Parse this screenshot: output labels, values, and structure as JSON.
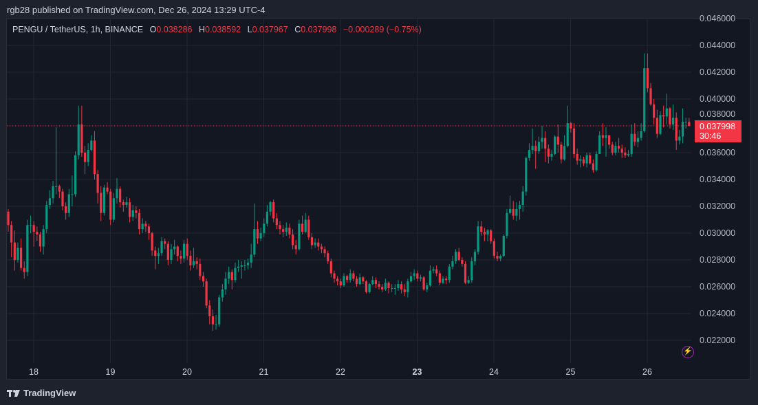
{
  "header": {
    "published": "rgb28 published on TradingView.com, Dec 26, 2024 13:29 UTC-4"
  },
  "legend": {
    "symbol": "PENGU / TetherUS, 1h, BINANCE",
    "o_label": "O",
    "o": "0.038286",
    "h_label": "H",
    "h": "0.038592",
    "l_label": "L",
    "l": "0.037967",
    "c_label": "C",
    "c": "0.037998",
    "change": "−0.000289 (−0.75%)"
  },
  "price_label": {
    "price": "0.037998",
    "countdown": "30:46"
  },
  "footer": {
    "brand": "TradingView",
    "logo": "tradingview-logo"
  },
  "icons": {
    "bolt": "lightning-icon"
  },
  "colors": {
    "up": "#089981",
    "down": "#f23645",
    "background": "#131722",
    "grid": "#232733",
    "text": "#d1d4dc",
    "accent": "#9c27b0"
  },
  "chart_data": {
    "type": "candlestick",
    "title": "PENGU / TetherUS, 1h, BINANCE",
    "interval": "1h",
    "x_start": "Dec 17 16:00",
    "x_ticks": [
      "18",
      "19",
      "20",
      "21",
      "22",
      "23",
      "24",
      "25",
      "26"
    ],
    "x_tick_bold": "23",
    "y_ticks": [
      "0.022000",
      "0.024000",
      "0.026000",
      "0.028000",
      "0.030000",
      "0.032000",
      "0.034000",
      "0.036000",
      "0.038000",
      "0.040000",
      "0.042000",
      "0.044000",
      "0.046000"
    ],
    "ylim": [
      0.0212,
      0.0468
    ],
    "grid": true,
    "last_price": 0.037998,
    "first_open": 0.0316,
    "close": [
      0.0306,
      0.0293,
      0.028,
      0.0289,
      0.0274,
      0.0271,
      0.0306,
      0.0306,
      0.0301,
      0.0299,
      0.029,
      0.0303,
      0.0321,
      0.0326,
      0.0335,
      0.0335,
      0.0331,
      0.032,
      0.0315,
      0.0329,
      0.0329,
      0.0358,
      0.0381,
      0.036,
      0.0353,
      0.0362,
      0.0369,
      0.0344,
      0.033,
      0.0315,
      0.0334,
      0.0331,
      0.031,
      0.0326,
      0.0333,
      0.0323,
      0.0321,
      0.0323,
      0.0312,
      0.0317,
      0.0315,
      0.0303,
      0.0307,
      0.0305,
      0.03,
      0.0287,
      0.0283,
      0.0285,
      0.0294,
      0.0292,
      0.028,
      0.0288,
      0.029,
      0.0283,
      0.0281,
      0.0292,
      0.0283,
      0.0276,
      0.0279,
      0.0277,
      0.0268,
      0.0264,
      0.0246,
      0.0238,
      0.0232,
      0.0232,
      0.0252,
      0.0258,
      0.0266,
      0.0271,
      0.0265,
      0.0274,
      0.0275,
      0.0276,
      0.0276,
      0.0278,
      0.0284,
      0.0303,
      0.0296,
      0.03,
      0.0307,
      0.0316,
      0.0323,
      0.0311,
      0.0306,
      0.0303,
      0.0301,
      0.0304,
      0.0299,
      0.0291,
      0.0288,
      0.0307,
      0.0301,
      0.031,
      0.0297,
      0.0291,
      0.0293,
      0.029,
      0.0288,
      0.0285,
      0.0279,
      0.027,
      0.0266,
      0.0264,
      0.0261,
      0.0268,
      0.0265,
      0.027,
      0.0266,
      0.0262,
      0.0267,
      0.0264,
      0.0256,
      0.0262,
      0.0265,
      0.0262,
      0.026,
      0.0258,
      0.0263,
      0.0259,
      0.0259,
      0.0259,
      0.0262,
      0.0258,
      0.0256,
      0.0264,
      0.0268,
      0.027,
      0.0266,
      0.0267,
      0.0258,
      0.0261,
      0.0272,
      0.0273,
      0.027,
      0.0263,
      0.0266,
      0.0265,
      0.0275,
      0.0279,
      0.0286,
      0.028,
      0.0277,
      0.0263,
      0.0265,
      0.0279,
      0.0286,
      0.0305,
      0.0301,
      0.0299,
      0.0302,
      0.0294,
      0.0283,
      0.0281,
      0.0283,
      0.0298,
      0.0315,
      0.0318,
      0.0313,
      0.0318,
      0.0321,
      0.0331,
      0.0356,
      0.0362,
      0.0365,
      0.0361,
      0.0368,
      0.0371,
      0.0363,
      0.0357,
      0.0359,
      0.0372,
      0.0366,
      0.0355,
      0.0365,
      0.0382,
      0.0378,
      0.0359,
      0.0354,
      0.0355,
      0.0352,
      0.0358,
      0.0352,
      0.0347,
      0.0359,
      0.0373,
      0.0371,
      0.0373,
      0.0366,
      0.036,
      0.0365,
      0.0363,
      0.036,
      0.0358,
      0.0359,
      0.0374,
      0.0368,
      0.0371,
      0.0376,
      0.0423,
      0.0408,
      0.0396,
      0.0386,
      0.0374,
      0.0388,
      0.0387,
      0.0393,
      0.0381,
      0.0386,
      0.0369,
      0.0372,
      0.0383,
      0.0383,
      0.037998
    ],
    "high": [
      0.0318,
      0.0309,
      0.0302,
      0.0293,
      0.0296,
      0.0279,
      0.031,
      0.0313,
      0.0309,
      0.0305,
      0.0301,
      0.0306,
      0.0324,
      0.0332,
      0.0339,
      0.0379,
      0.0336,
      0.0333,
      0.0323,
      0.0333,
      0.0343,
      0.0361,
      0.0395,
      0.0395,
      0.0365,
      0.0367,
      0.0373,
      0.0376,
      0.0347,
      0.0335,
      0.0336,
      0.0338,
      0.0333,
      0.033,
      0.0341,
      0.0335,
      0.0325,
      0.0327,
      0.0326,
      0.0321,
      0.032,
      0.0318,
      0.0311,
      0.0309,
      0.0307,
      0.0301,
      0.029,
      0.0289,
      0.0297,
      0.0296,
      0.0294,
      0.0292,
      0.0295,
      0.0291,
      0.0287,
      0.0295,
      0.0296,
      0.0287,
      0.0289,
      0.0282,
      0.0281,
      0.0271,
      0.0266,
      0.025,
      0.0243,
      0.0239,
      0.0254,
      0.0262,
      0.0271,
      0.0275,
      0.0273,
      0.0278,
      0.028,
      0.0279,
      0.028,
      0.0281,
      0.0292,
      0.0322,
      0.0309,
      0.0304,
      0.0311,
      0.0321,
      0.0324,
      0.0325,
      0.0315,
      0.0309,
      0.0306,
      0.0308,
      0.0307,
      0.0303,
      0.0295,
      0.031,
      0.0313,
      0.0315,
      0.0313,
      0.03,
      0.0296,
      0.0296,
      0.0292,
      0.029,
      0.0287,
      0.0281,
      0.0272,
      0.0268,
      0.0266,
      0.027,
      0.0269,
      0.0273,
      0.0272,
      0.0268,
      0.027,
      0.0268,
      0.0265,
      0.0263,
      0.0268,
      0.0267,
      0.0264,
      0.0262,
      0.0266,
      0.0264,
      0.0262,
      0.0262,
      0.0265,
      0.0264,
      0.0262,
      0.0266,
      0.0271,
      0.0273,
      0.0272,
      0.0269,
      0.0268,
      0.0263,
      0.0276,
      0.0275,
      0.0276,
      0.0272,
      0.0268,
      0.0268,
      0.0277,
      0.0283,
      0.0288,
      0.0289,
      0.0282,
      0.0279,
      0.0268,
      0.0282,
      0.0288,
      0.0309,
      0.0309,
      0.0304,
      0.0303,
      0.0303,
      0.0296,
      0.0286,
      0.0284,
      0.0299,
      0.0318,
      0.0328,
      0.0324,
      0.0323,
      0.0324,
      0.0335,
      0.0357,
      0.0367,
      0.0378,
      0.0369,
      0.0372,
      0.038,
      0.0376,
      0.0366,
      0.0362,
      0.0373,
      0.0381,
      0.0368,
      0.0373,
      0.0395,
      0.0383,
      0.0382,
      0.0363,
      0.0358,
      0.0357,
      0.036,
      0.036,
      0.0355,
      0.0361,
      0.0376,
      0.0382,
      0.0379,
      0.0373,
      0.0368,
      0.0368,
      0.0371,
      0.0366,
      0.0364,
      0.0362,
      0.0381,
      0.0382,
      0.0376,
      0.0382,
      0.0434,
      0.0434,
      0.0412,
      0.04,
      0.0392,
      0.0391,
      0.0395,
      0.0404,
      0.0394,
      0.0396,
      0.039,
      0.0377,
      0.0393,
      0.0386,
      0.038592
    ],
    "low": [
      0.0301,
      0.0282,
      0.0272,
      0.0278,
      0.0272,
      0.0266,
      0.0268,
      0.03,
      0.029,
      0.0294,
      0.0286,
      0.0284,
      0.03,
      0.0318,
      0.0322,
      0.0329,
      0.0326,
      0.0317,
      0.031,
      0.0312,
      0.032,
      0.0327,
      0.0355,
      0.0357,
      0.0344,
      0.035,
      0.0361,
      0.034,
      0.0322,
      0.0309,
      0.0313,
      0.0329,
      0.0306,
      0.0308,
      0.0322,
      0.0319,
      0.0316,
      0.0319,
      0.0308,
      0.0309,
      0.0311,
      0.0299,
      0.03,
      0.0301,
      0.0295,
      0.0283,
      0.0273,
      0.0277,
      0.0283,
      0.0288,
      0.0276,
      0.0277,
      0.0284,
      0.0279,
      0.0277,
      0.0278,
      0.028,
      0.0272,
      0.0274,
      0.0273,
      0.0265,
      0.026,
      0.0244,
      0.0232,
      0.0227,
      0.0228,
      0.023,
      0.0249,
      0.0254,
      0.0262,
      0.0258,
      0.0263,
      0.0271,
      0.0266,
      0.0272,
      0.0273,
      0.0274,
      0.0282,
      0.0292,
      0.0294,
      0.0297,
      0.0305,
      0.0313,
      0.0308,
      0.0303,
      0.0299,
      0.0297,
      0.0298,
      0.0296,
      0.0288,
      0.0284,
      0.0287,
      0.0299,
      0.03,
      0.0295,
      0.0288,
      0.0289,
      0.0287,
      0.0285,
      0.0282,
      0.0277,
      0.0267,
      0.0263,
      0.0261,
      0.0259,
      0.026,
      0.0263,
      0.0263,
      0.0264,
      0.026,
      0.0261,
      0.0262,
      0.0255,
      0.0255,
      0.0261,
      0.0259,
      0.0258,
      0.0256,
      0.0257,
      0.0255,
      0.0256,
      0.0254,
      0.0257,
      0.0255,
      0.0253,
      0.0252,
      0.0263,
      0.0265,
      0.0264,
      0.0264,
      0.0257,
      0.0256,
      0.026,
      0.027,
      0.0268,
      0.0261,
      0.0262,
      0.0262,
      0.0263,
      0.0273,
      0.0277,
      0.0279,
      0.0275,
      0.0262,
      0.0262,
      0.0263,
      0.0276,
      0.0284,
      0.0298,
      0.0294,
      0.0294,
      0.0292,
      0.0281,
      0.0279,
      0.0279,
      0.0282,
      0.0296,
      0.0314,
      0.031,
      0.0309,
      0.031,
      0.0316,
      0.0328,
      0.0354,
      0.0359,
      0.0348,
      0.0359,
      0.0363,
      0.0353,
      0.0352,
      0.0354,
      0.0358,
      0.036,
      0.0352,
      0.0354,
      0.0364,
      0.0375,
      0.0356,
      0.0351,
      0.0349,
      0.035,
      0.0349,
      0.0351,
      0.0345,
      0.0346,
      0.0359,
      0.0365,
      0.0357,
      0.0363,
      0.0358,
      0.0358,
      0.036,
      0.0356,
      0.0356,
      0.0357,
      0.0357,
      0.0365,
      0.0364,
      0.0369,
      0.0375,
      0.0405,
      0.0395,
      0.0381,
      0.0371,
      0.0373,
      0.0379,
      0.0381,
      0.0378,
      0.0377,
      0.0362,
      0.0366,
      0.0367,
      0.0378,
      0.037967
    ]
  }
}
